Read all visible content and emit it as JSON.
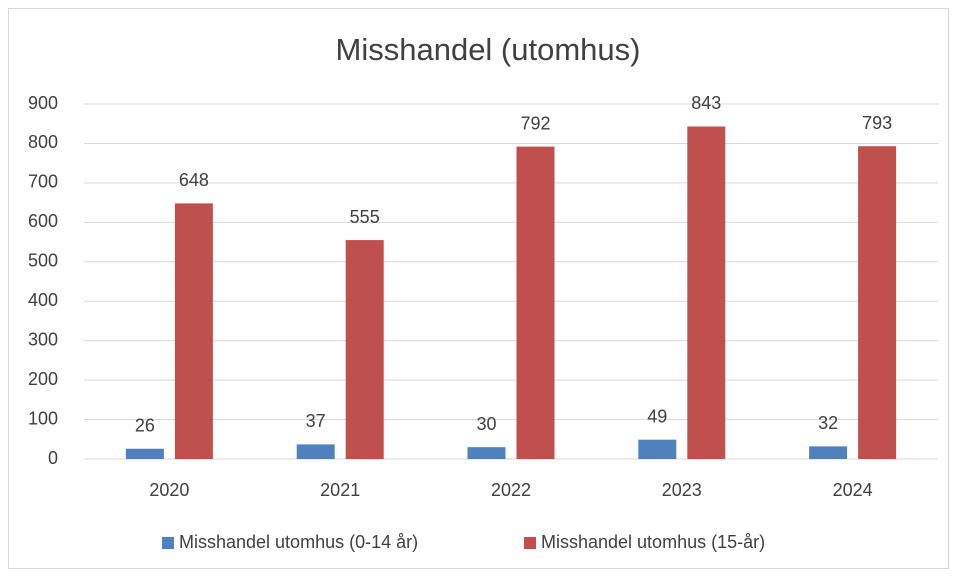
{
  "chart_data": {
    "type": "bar",
    "title": "Misshandel (utomhus)",
    "categories": [
      "2020",
      "2021",
      "2022",
      "2023",
      "2024"
    ],
    "series": [
      {
        "name": "Misshandel utomhus (0-14 år)",
        "color": "#4f81bd",
        "values": [
          26,
          37,
          30,
          49,
          32
        ]
      },
      {
        "name": "Misshandel utomhus (15-år)",
        "color": "#c0504d",
        "values": [
          648,
          555,
          792,
          843,
          793
        ]
      }
    ],
    "ylim": [
      0,
      900
    ],
    "yticks": [
      0,
      100,
      200,
      300,
      400,
      500,
      600,
      700,
      800,
      900
    ],
    "grid": true,
    "legend": "bottom"
  }
}
